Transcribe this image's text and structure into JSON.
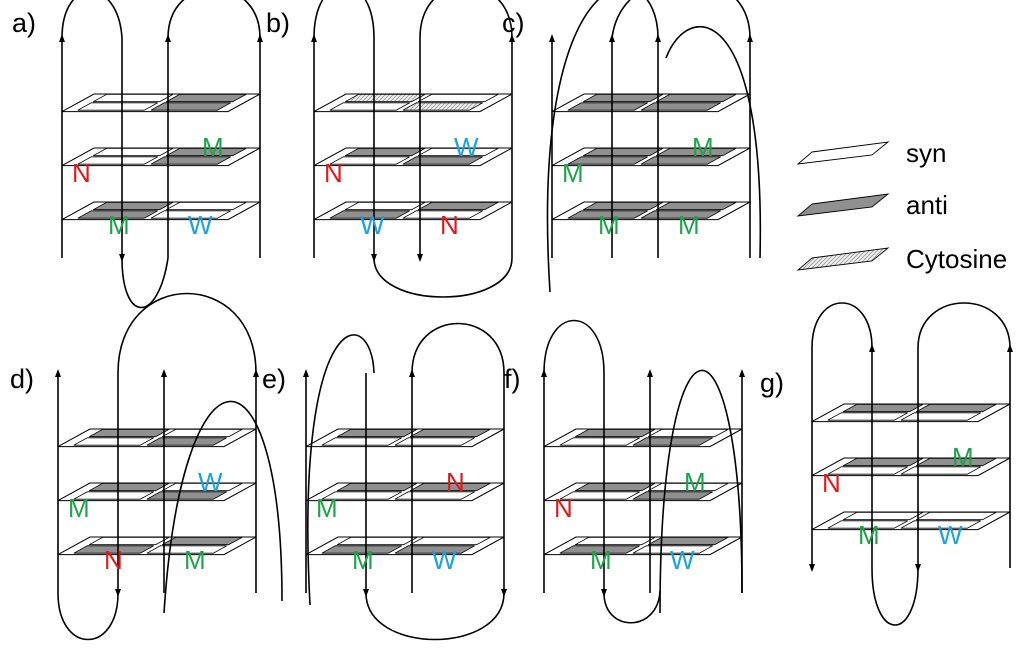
{
  "colors": {
    "N": "#e0191b",
    "M": "#1fa34a",
    "W": "#1aa3e0",
    "syn": "#ffffff",
    "anti": "#909090",
    "cytosine": "#d6d6d6"
  },
  "legend": {
    "syn": "syn",
    "anti": "anti",
    "cytosine": "Cytosine"
  },
  "panels": [
    {
      "id": "a",
      "label": "a)",
      "grooves": [
        "N",
        "M",
        "M",
        "W"
      ],
      "layers": [
        [
          "syn",
          "anti",
          "syn",
          "anti"
        ],
        [
          "syn",
          "anti",
          "syn",
          "anti"
        ],
        [
          "anti",
          "syn",
          "anti",
          "syn"
        ]
      ]
    },
    {
      "id": "b",
      "label": "b)",
      "grooves": [
        "N",
        "W",
        "W",
        "N"
      ],
      "layers": [
        [
          "cyt",
          "syn",
          "syn",
          "cyt"
        ],
        [
          "anti",
          "syn",
          "syn",
          "anti"
        ],
        [
          "syn",
          "anti",
          "anti",
          "syn"
        ]
      ]
    },
    {
      "id": "c",
      "label": "c)",
      "grooves": [
        "M",
        "M",
        "M",
        "M"
      ],
      "layers": [
        [
          "anti",
          "anti",
          "anti",
          "anti"
        ],
        [
          "anti",
          "anti",
          "anti",
          "anti"
        ],
        [
          "anti",
          "anti",
          "anti",
          "anti"
        ]
      ]
    },
    {
      "id": "d",
      "label": "d)",
      "grooves": [
        "M",
        "W",
        "N",
        "M"
      ],
      "layers": [
        [
          "anti",
          "syn",
          "syn",
          "anti"
        ],
        [
          "anti",
          "syn",
          "syn",
          "anti"
        ],
        [
          "syn",
          "anti",
          "anti",
          "syn"
        ]
      ]
    },
    {
      "id": "e",
      "label": "e)",
      "grooves": [
        "M",
        "N",
        "M",
        "W"
      ],
      "layers": [
        [
          "anti",
          "anti",
          "syn",
          "syn"
        ],
        [
          "anti",
          "anti",
          "syn",
          "syn"
        ],
        [
          "syn",
          "syn",
          "anti",
          "anti"
        ]
      ]
    },
    {
      "id": "f",
      "label": "f)",
      "grooves": [
        "N",
        "M",
        "M",
        "W"
      ],
      "layers": [
        [
          "anti",
          "syn",
          "syn",
          "anti"
        ],
        [
          "anti",
          "syn",
          "syn",
          "anti"
        ],
        [
          "syn",
          "anti",
          "anti",
          "syn"
        ]
      ]
    },
    {
      "id": "g",
      "label": "g)",
      "grooves": [
        "N",
        "M",
        "M",
        "W"
      ],
      "layers": [
        [
          "anti",
          "anti",
          "syn",
          "syn"
        ],
        [
          "anti",
          "anti",
          "syn",
          "syn"
        ],
        [
          "syn",
          "syn",
          "syn",
          "syn"
        ]
      ]
    }
  ]
}
